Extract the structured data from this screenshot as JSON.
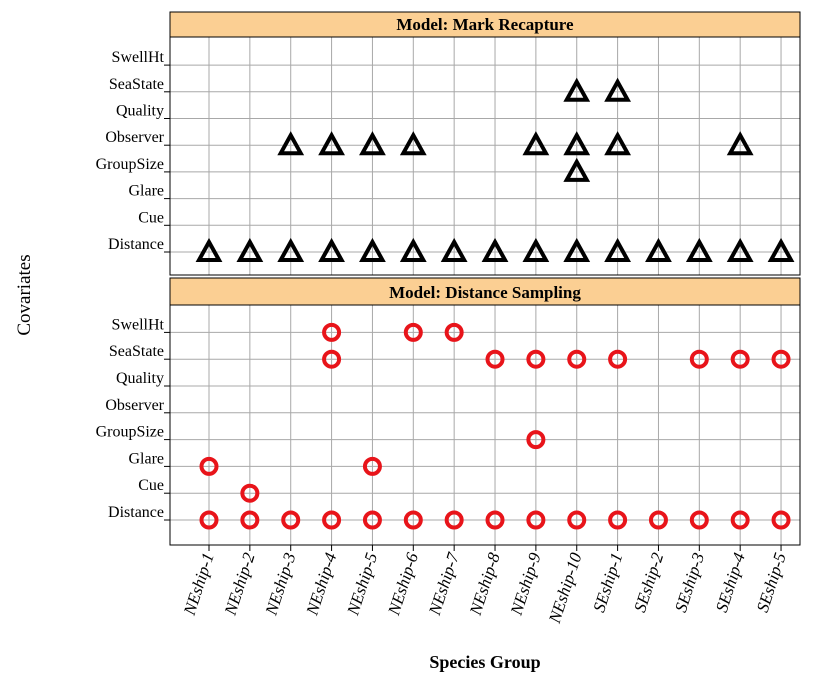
{
  "chart_data": {
    "type": "scatter",
    "y_axis_label": "Covariates",
    "x_axis_label": "Species Group",
    "categories": [
      "NEship-1",
      "NEship-2",
      "NEship-3",
      "NEship-4",
      "NEship-5",
      "NEship-6",
      "NEship-7",
      "NEship-8",
      "NEship-9",
      "NEship-10",
      "SEship-1",
      "SEship-2",
      "SEship-3",
      "SEship-4",
      "SEship-5"
    ],
    "covariates": [
      "Distance",
      "Cue",
      "Glare",
      "GroupSize",
      "Observer",
      "Quality",
      "SeaState",
      "SwellHt"
    ],
    "panels": [
      {
        "title": "Model: Mark Recapture",
        "marker": "triangle",
        "color": "#000000",
        "rows": [
          [
            "NEship-1",
            "NEship-2",
            "NEship-3",
            "NEship-4",
            "NEship-5",
            "NEship-6",
            "NEship-7",
            "NEship-8",
            "NEship-9",
            "NEship-10",
            "SEship-1",
            "SEship-2",
            "SEship-3",
            "SEship-4",
            "SEship-5"
          ],
          [],
          [],
          [
            "NEship-10"
          ],
          [
            "NEship-3",
            "NEship-4",
            "NEship-5",
            "NEship-6",
            "NEship-9",
            "NEship-10",
            "SEship-1",
            "SEship-4"
          ],
          [],
          [
            "NEship-10",
            "SEship-1"
          ],
          []
        ]
      },
      {
        "title": "Model: Distance Sampling",
        "marker": "circle",
        "color": "#e8141a",
        "rows": [
          [
            "NEship-1",
            "NEship-2",
            "NEship-3",
            "NEship-4",
            "NEship-5",
            "NEship-6",
            "NEship-7",
            "NEship-8",
            "NEship-9",
            "NEship-10",
            "SEship-1",
            "SEship-2",
            "SEship-3",
            "SEship-4",
            "SEship-5"
          ],
          [
            "NEship-2"
          ],
          [
            "NEship-1",
            "NEship-5"
          ],
          [
            "NEship-9"
          ],
          [],
          [],
          [
            "NEship-4",
            "NEship-8",
            "NEship-9",
            "NEship-10",
            "SEship-1",
            "SEship-3",
            "SEship-4",
            "SEship-5"
          ],
          [
            "NEship-4",
            "NEship-6",
            "NEship-7"
          ]
        ]
      }
    ]
  }
}
